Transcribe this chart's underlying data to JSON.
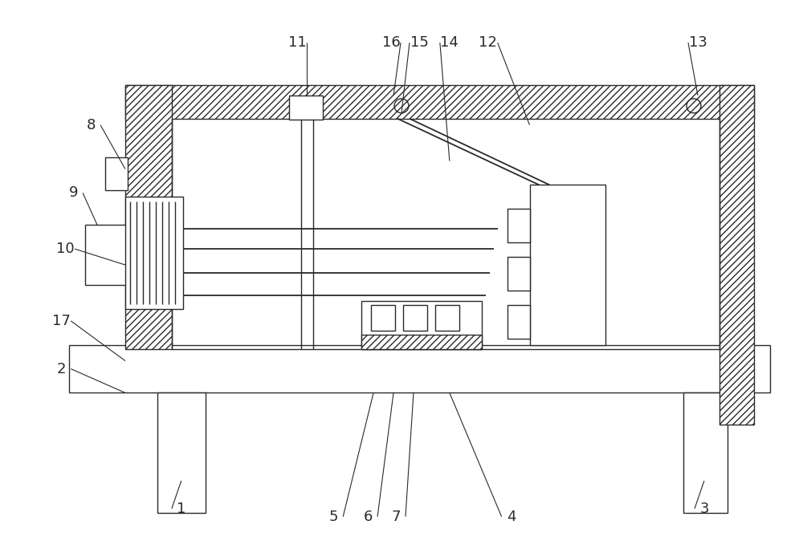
{
  "bg_color": "#ffffff",
  "line_color": "#2a2a2a",
  "fig_width": 10.0,
  "fig_height": 6.79,
  "lw": 1.0
}
